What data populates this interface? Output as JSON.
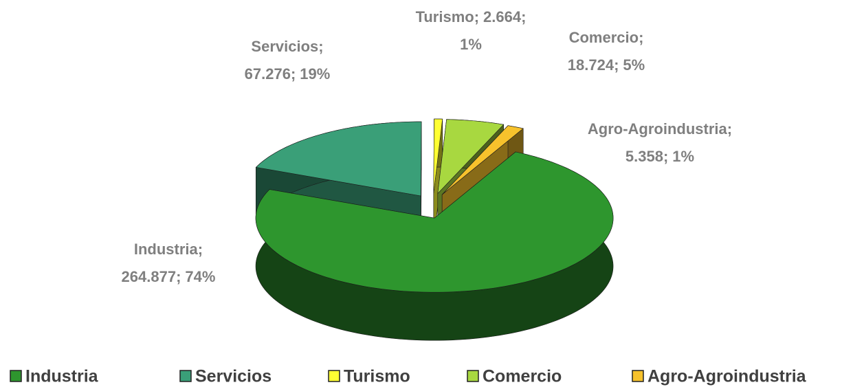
{
  "chart_data": {
    "type": "pie3d",
    "categories": [
      "Industria",
      "Servicios",
      "Turismo",
      "Comercio",
      "Agro-Agroindustria"
    ],
    "values": [
      264877,
      67276,
      2664,
      18724,
      5358
    ],
    "value_labels": [
      "264.877",
      "67.276",
      "2.664",
      "18.724",
      "5.358"
    ],
    "percents": [
      74,
      19,
      1,
      5,
      1
    ],
    "percent_labels": [
      "74%",
      "19%",
      "1%",
      "5%",
      "1%"
    ],
    "label_separator": ";",
    "colors": [
      "#2e962e",
      "#3a9f78",
      "#ffff33",
      "#a8d840",
      "#f7c22c"
    ],
    "legend": "bottom"
  }
}
